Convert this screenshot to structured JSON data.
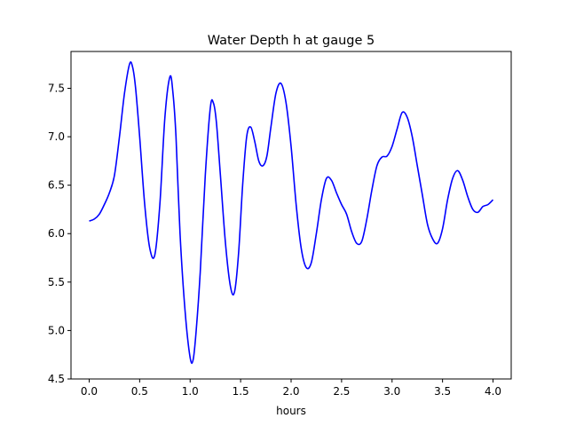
{
  "chart_data": {
    "type": "line",
    "title": "Water Depth h at gauge 5",
    "xlabel": "hours",
    "ylabel": "",
    "xlim": [
      -0.18,
      4.18
    ],
    "ylim": [
      4.5,
      7.88
    ],
    "grid": false,
    "legend": "none",
    "x_ticks": [
      0.0,
      0.5,
      1.0,
      1.5,
      2.0,
      2.5,
      3.0,
      3.5,
      4.0
    ],
    "x_tick_labels": [
      "0.0",
      "0.5",
      "1.0",
      "1.5",
      "2.0",
      "2.5",
      "3.0",
      "3.5",
      "4.0"
    ],
    "y_ticks": [
      4.5,
      5.0,
      5.5,
      6.0,
      6.5,
      7.0,
      7.5
    ],
    "y_tick_labels": [
      "4.5",
      "5.0",
      "5.5",
      "6.0",
      "6.5",
      "7.0",
      "7.5"
    ],
    "series": [
      {
        "color": "#0000ff",
        "x": [
          0.0,
          0.05,
          0.1,
          0.15,
          0.2,
          0.25,
          0.3,
          0.35,
          0.4,
          0.43,
          0.46,
          0.5,
          0.55,
          0.6,
          0.65,
          0.7,
          0.75,
          0.8,
          0.83,
          0.86,
          0.9,
          0.95,
          1.0,
          1.03,
          1.06,
          1.1,
          1.15,
          1.2,
          1.23,
          1.26,
          1.3,
          1.35,
          1.4,
          1.44,
          1.48,
          1.52,
          1.56,
          1.6,
          1.64,
          1.68,
          1.72,
          1.76,
          1.8,
          1.85,
          1.9,
          1.95,
          2.0,
          2.05,
          2.1,
          2.15,
          2.2,
          2.25,
          2.3,
          2.35,
          2.4,
          2.45,
          2.5,
          2.55,
          2.6,
          2.65,
          2.7,
          2.75,
          2.8,
          2.85,
          2.9,
          2.95,
          3.0,
          3.05,
          3.1,
          3.15,
          3.2,
          3.25,
          3.3,
          3.35,
          3.4,
          3.45,
          3.5,
          3.55,
          3.6,
          3.65,
          3.7,
          3.75,
          3.8,
          3.85,
          3.9,
          3.95,
          4.0
        ],
        "y": [
          6.13,
          6.15,
          6.2,
          6.3,
          6.42,
          6.6,
          7.0,
          7.45,
          7.75,
          7.72,
          7.5,
          7.0,
          6.3,
          5.85,
          5.78,
          6.3,
          7.2,
          7.62,
          7.45,
          7.0,
          6.0,
          5.2,
          4.72,
          4.7,
          5.0,
          5.6,
          6.6,
          7.3,
          7.35,
          7.15,
          6.6,
          5.9,
          5.45,
          5.4,
          5.8,
          6.5,
          7.0,
          7.1,
          6.95,
          6.75,
          6.7,
          6.8,
          7.1,
          7.45,
          7.55,
          7.35,
          6.9,
          6.3,
          5.85,
          5.65,
          5.7,
          6.0,
          6.35,
          6.57,
          6.55,
          6.42,
          6.3,
          6.2,
          6.02,
          5.9,
          5.92,
          6.15,
          6.45,
          6.7,
          6.79,
          6.8,
          6.9,
          7.08,
          7.25,
          7.2,
          7.0,
          6.7,
          6.4,
          6.1,
          5.95,
          5.9,
          6.05,
          6.35,
          6.57,
          6.65,
          6.55,
          6.38,
          6.25,
          6.22,
          6.28,
          6.3,
          6.35
        ]
      }
    ]
  }
}
